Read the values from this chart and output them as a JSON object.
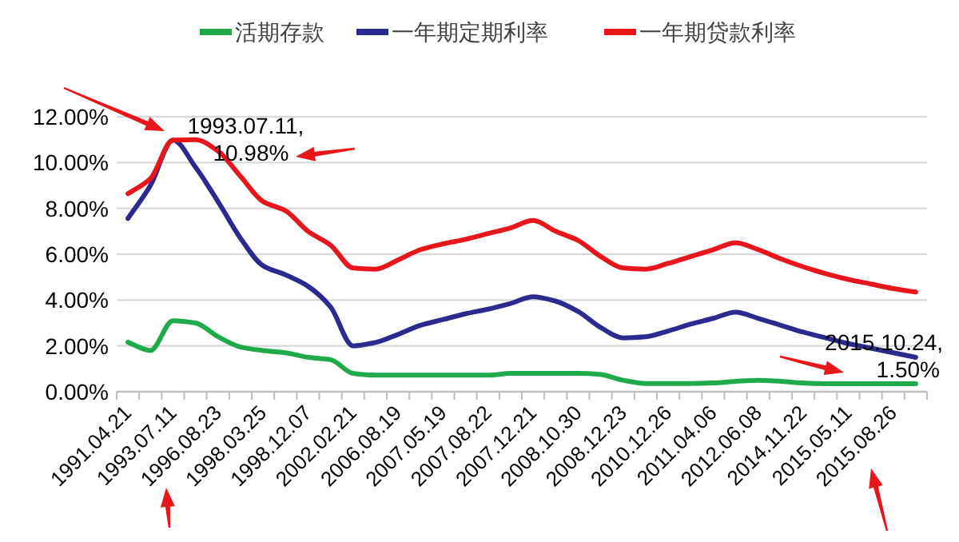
{
  "chart_data": {
    "type": "line",
    "categories": [
      "1991.04.21",
      null,
      "1993.07.11",
      null,
      "1996.08.23",
      null,
      "1998.03.25",
      null,
      "1998.12.07",
      null,
      "2002.02.21",
      null,
      "2006.08.19",
      null,
      "2007.05.19",
      null,
      "2007.08.22",
      null,
      "2007.12.21",
      null,
      "2008.10.30",
      null,
      "2008.12.23",
      null,
      "2010.12.26",
      null,
      "2011.04.06",
      null,
      "2012.06.08",
      null,
      "2014.11.22",
      null,
      "2015.05.11",
      null,
      "2015.08.26",
      null
    ],
    "series": [
      {
        "name": "活期存款",
        "color": "#1faa4b",
        "values": [
          2.16,
          1.8,
          3.1,
          3.0,
          2.4,
          1.95,
          1.8,
          1.7,
          1.5,
          1.4,
          0.8,
          0.72,
          0.72,
          0.72,
          0.72,
          0.72,
          0.72,
          0.8,
          0.8,
          0.8,
          0.8,
          0.75,
          0.5,
          0.36,
          0.36,
          0.36,
          0.38,
          0.45,
          0.5,
          0.45,
          0.38,
          0.35,
          0.35,
          0.35,
          0.35,
          0.35
        ]
      },
      {
        "name": "一年期定期利率",
        "color": "#2b2a8f",
        "values": [
          7.56,
          9.0,
          10.98,
          9.8,
          8.3,
          6.7,
          5.5,
          5.1,
          4.6,
          3.7,
          2.0,
          2.15,
          2.5,
          2.9,
          3.15,
          3.4,
          3.6,
          3.85,
          4.14,
          3.95,
          3.5,
          2.8,
          2.35,
          2.4,
          2.65,
          2.95,
          3.2,
          3.47,
          3.2,
          2.9,
          2.6,
          2.35,
          2.1,
          1.9,
          1.7,
          1.5
        ]
      },
      {
        "name": "一年期贷款利率",
        "color": "#e8161b",
        "values": [
          8.64,
          9.3,
          10.98,
          11.0,
          10.5,
          9.4,
          8.3,
          7.9,
          7.0,
          6.4,
          5.4,
          5.35,
          5.75,
          6.2,
          6.45,
          6.65,
          6.9,
          7.15,
          7.47,
          7.0,
          6.6,
          5.9,
          5.4,
          5.35,
          5.6,
          5.9,
          6.2,
          6.5,
          6.2,
          5.8,
          5.45,
          5.15,
          4.9,
          4.7,
          4.5,
          4.35
        ]
      }
    ],
    "ylim": [
      0,
      12
    ],
    "yticks": [
      {
        "value": 0,
        "label": "0.00%"
      },
      {
        "value": 2,
        "label": "2.00%"
      },
      {
        "value": 4,
        "label": "4.00%"
      },
      {
        "value": 6,
        "label": "6.00%"
      },
      {
        "value": 8,
        "label": "8.00%"
      },
      {
        "value": 10,
        "label": "10.00%"
      },
      {
        "value": 12,
        "label": "12.00%"
      }
    ],
    "grid": "y",
    "legend": "top",
    "marker": "none",
    "line_style": "solid",
    "annotations": [
      {
        "text": "1993.07.11, 10.98%",
        "x": "1993.07.11",
        "y": 10.98
      },
      "2015.10.24, 1.50%"
    ]
  }
}
